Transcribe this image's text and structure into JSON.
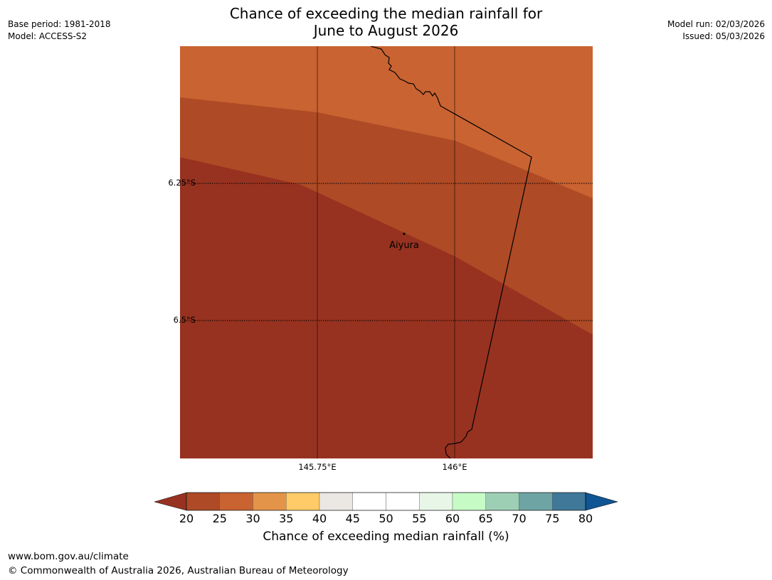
{
  "header": {
    "title_line1": "Chance of exceeding the median rainfall for",
    "title_line2": "June to August 2026",
    "base_period": "Base period: 1981-2018",
    "model": "Model: ACCESS-S2",
    "model_run": "Model run: 02/03/2026",
    "issued": "Issued: 05/03/2026"
  },
  "map": {
    "lat_labels": [
      "6.25°S",
      "6.5°S"
    ],
    "lon_labels": [
      "145.75°E",
      "146°E"
    ],
    "place": {
      "name": "Aiyura"
    },
    "region_colors": {
      "band_30": "#c96331",
      "band_25": "#ae4a25",
      "band_20": "#973220"
    }
  },
  "colorbar": {
    "label": "Chance of exceeding median rainfall (%)",
    "ticks": [
      "20",
      "25",
      "30",
      "35",
      "40",
      "45",
      "50",
      "55",
      "60",
      "65",
      "70",
      "75",
      "80"
    ],
    "under_color": "#973220",
    "over_color": "#0f5593",
    "colors": [
      "#ae4a25",
      "#c96331",
      "#e39448",
      "#fecb68",
      "#ebe8e4",
      "#ffffff",
      "#ffffff",
      "#e8f6e8",
      "#c7fbc6",
      "#9dcfb5",
      "#6ea4a4",
      "#3f7899"
    ]
  },
  "footer": {
    "url": "www.bom.gov.au/climate",
    "copyright": "© Commonwealth of Australia 2026, Australian Bureau of Meteorology"
  }
}
